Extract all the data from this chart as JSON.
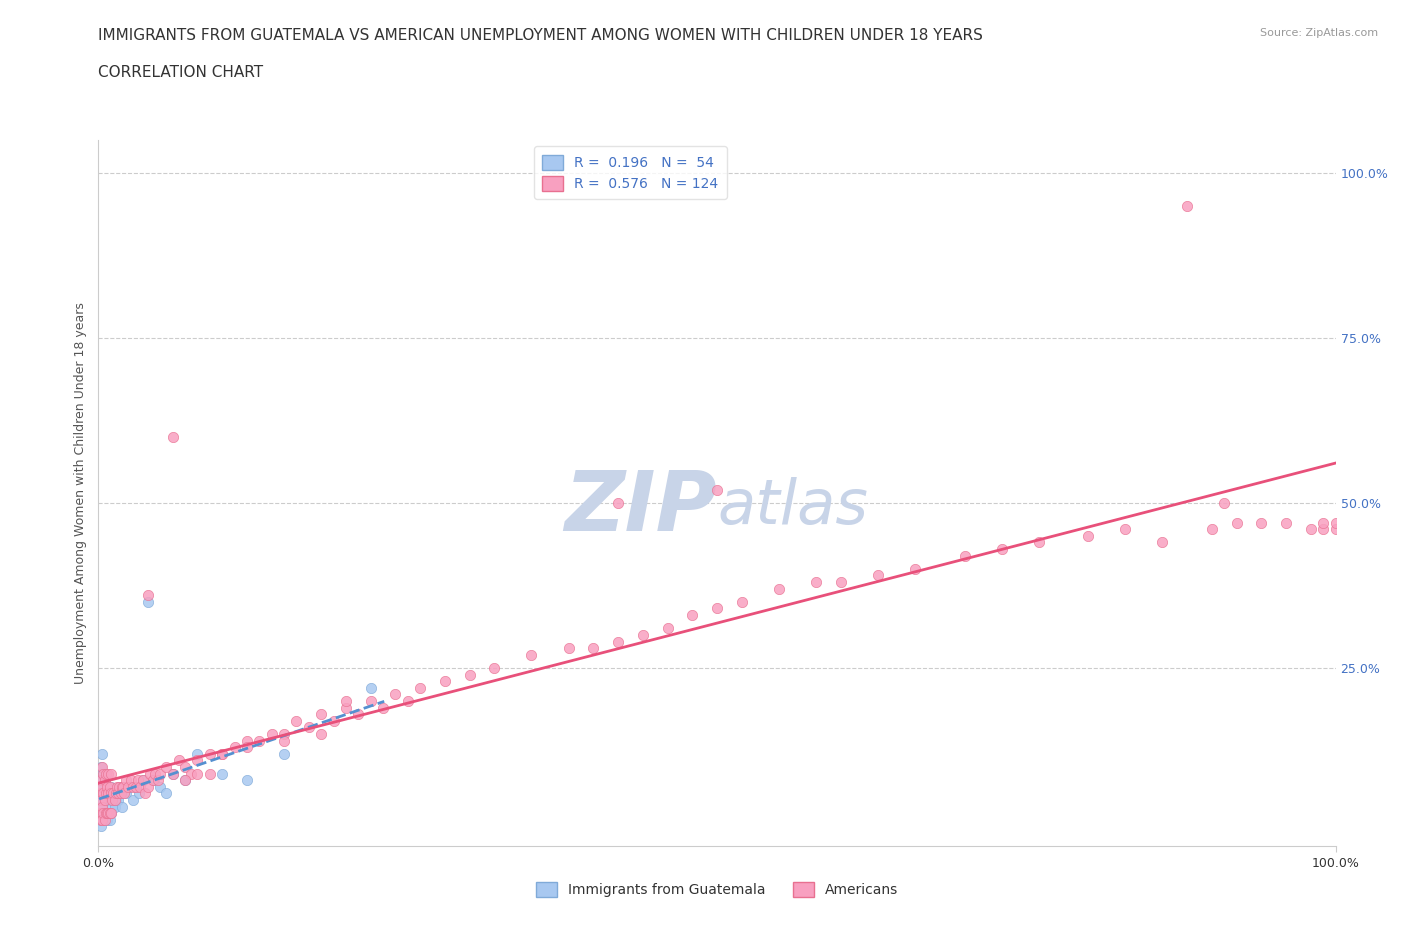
{
  "title_line1": "IMMIGRANTS FROM GUATEMALA VS AMERICAN UNEMPLOYMENT AMONG WOMEN WITH CHILDREN UNDER 18 YEARS",
  "title_line2": "CORRELATION CHART",
  "source": "Source: ZipAtlas.com",
  "ylabel": "Unemployment Among Women with Children Under 18 years",
  "xlim": [
    0.0,
    1.0
  ],
  "ylim": [
    -0.02,
    1.05
  ],
  "plot_ylim": [
    0.0,
    1.0
  ],
  "right_ytick_labels": [
    "25.0%",
    "50.0%",
    "75.0%",
    "100.0%"
  ],
  "right_ytick_positions": [
    0.25,
    0.5,
    0.75,
    1.0
  ],
  "grid_color": "#cccccc",
  "background_color": "#ffffff",
  "watermark_zip": "ZIP",
  "watermark_atlas": "atlas",
  "watermark_color_zip": "#c8d4e8",
  "watermark_color_atlas": "#c8d4e8",
  "series": [
    {
      "name": "Immigrants from Guatemala",
      "R": 0.196,
      "N": 54,
      "color_scatter": "#a8c8f0",
      "color_line": "#5590d0",
      "line_style": "--",
      "marker_edge": "#80aad8",
      "x": [
        0.001,
        0.001,
        0.001,
        0.002,
        0.002,
        0.002,
        0.002,
        0.003,
        0.003,
        0.003,
        0.003,
        0.004,
        0.004,
        0.004,
        0.005,
        0.005,
        0.005,
        0.006,
        0.006,
        0.007,
        0.007,
        0.008,
        0.008,
        0.009,
        0.009,
        0.01,
        0.01,
        0.011,
        0.012,
        0.013,
        0.014,
        0.015,
        0.016,
        0.017,
        0.018,
        0.019,
        0.02,
        0.022,
        0.025,
        0.028,
        0.03,
        0.033,
        0.036,
        0.04,
        0.045,
        0.05,
        0.055,
        0.06,
        0.07,
        0.08,
        0.1,
        0.12,
        0.15,
        0.22
      ],
      "y": [
        0.02,
        0.05,
        0.08,
        0.01,
        0.04,
        0.07,
        0.1,
        0.02,
        0.05,
        0.08,
        0.12,
        0.03,
        0.06,
        0.09,
        0.02,
        0.05,
        0.08,
        0.03,
        0.06,
        0.02,
        0.07,
        0.03,
        0.06,
        0.02,
        0.05,
        0.03,
        0.07,
        0.04,
        0.06,
        0.04,
        0.05,
        0.06,
        0.05,
        0.07,
        0.06,
        0.04,
        0.07,
        0.06,
        0.07,
        0.05,
        0.07,
        0.06,
        0.08,
        0.35,
        0.08,
        0.07,
        0.06,
        0.09,
        0.08,
        0.12,
        0.09,
        0.08,
        0.12,
        0.22
      ]
    },
    {
      "name": "Americans",
      "R": 0.576,
      "N": 124,
      "color_scatter": "#f8a0c0",
      "color_line": "#e8507a",
      "line_style": "-",
      "marker_edge": "#e87090",
      "x": [
        0.001,
        0.001,
        0.002,
        0.002,
        0.002,
        0.003,
        0.003,
        0.003,
        0.003,
        0.004,
        0.004,
        0.004,
        0.005,
        0.005,
        0.005,
        0.006,
        0.006,
        0.006,
        0.007,
        0.007,
        0.008,
        0.008,
        0.008,
        0.009,
        0.009,
        0.01,
        0.01,
        0.01,
        0.011,
        0.012,
        0.013,
        0.014,
        0.015,
        0.016,
        0.017,
        0.018,
        0.019,
        0.02,
        0.021,
        0.022,
        0.024,
        0.026,
        0.028,
        0.03,
        0.032,
        0.034,
        0.036,
        0.038,
        0.04,
        0.042,
        0.044,
        0.046,
        0.048,
        0.05,
        0.055,
        0.06,
        0.065,
        0.07,
        0.075,
        0.08,
        0.09,
        0.1,
        0.11,
        0.12,
        0.13,
        0.14,
        0.15,
        0.16,
        0.17,
        0.18,
        0.19,
        0.2,
        0.21,
        0.22,
        0.23,
        0.24,
        0.25,
        0.26,
        0.28,
        0.3,
        0.32,
        0.35,
        0.38,
        0.4,
        0.42,
        0.44,
        0.46,
        0.48,
        0.5,
        0.52,
        0.55,
        0.58,
        0.6,
        0.63,
        0.66,
        0.7,
        0.73,
        0.76,
        0.8,
        0.83,
        0.86,
        0.9,
        0.92,
        0.94,
        0.96,
        0.98,
        0.99,
        0.99,
        1.0,
        1.0,
        0.04,
        0.06,
        0.07,
        0.08,
        0.09,
        0.1,
        0.12,
        0.15,
        0.18,
        0.2,
        0.42,
        0.5,
        0.88,
        0.91
      ],
      "y": [
        0.03,
        0.06,
        0.02,
        0.05,
        0.08,
        0.02,
        0.04,
        0.07,
        0.1,
        0.03,
        0.06,
        0.09,
        0.02,
        0.05,
        0.08,
        0.03,
        0.06,
        0.09,
        0.03,
        0.07,
        0.03,
        0.06,
        0.09,
        0.03,
        0.07,
        0.03,
        0.06,
        0.09,
        0.05,
        0.06,
        0.05,
        0.06,
        0.07,
        0.06,
        0.07,
        0.06,
        0.07,
        0.07,
        0.06,
        0.08,
        0.07,
        0.08,
        0.07,
        0.07,
        0.08,
        0.07,
        0.08,
        0.06,
        0.07,
        0.09,
        0.08,
        0.09,
        0.08,
        0.09,
        0.1,
        0.09,
        0.11,
        0.1,
        0.09,
        0.11,
        0.12,
        0.12,
        0.13,
        0.14,
        0.14,
        0.15,
        0.15,
        0.17,
        0.16,
        0.18,
        0.17,
        0.19,
        0.18,
        0.2,
        0.19,
        0.21,
        0.2,
        0.22,
        0.23,
        0.24,
        0.25,
        0.27,
        0.28,
        0.28,
        0.29,
        0.3,
        0.31,
        0.33,
        0.34,
        0.35,
        0.37,
        0.38,
        0.38,
        0.39,
        0.4,
        0.42,
        0.43,
        0.44,
        0.45,
        0.46,
        0.44,
        0.46,
        0.47,
        0.47,
        0.47,
        0.46,
        0.46,
        0.47,
        0.46,
        0.47,
        0.36,
        0.6,
        0.08,
        0.09,
        0.09,
        0.12,
        0.13,
        0.14,
        0.15,
        0.2,
        0.5,
        0.52,
        0.95,
        0.5
      ]
    }
  ],
  "title_fontsize": 11,
  "subtitle_fontsize": 11,
  "axis_label_fontsize": 9,
  "tick_fontsize": 9,
  "legend_fontsize": 10,
  "watermark_fontsize": 60,
  "source_fontsize": 8,
  "scatter_size": 55,
  "line_width": 2.0
}
